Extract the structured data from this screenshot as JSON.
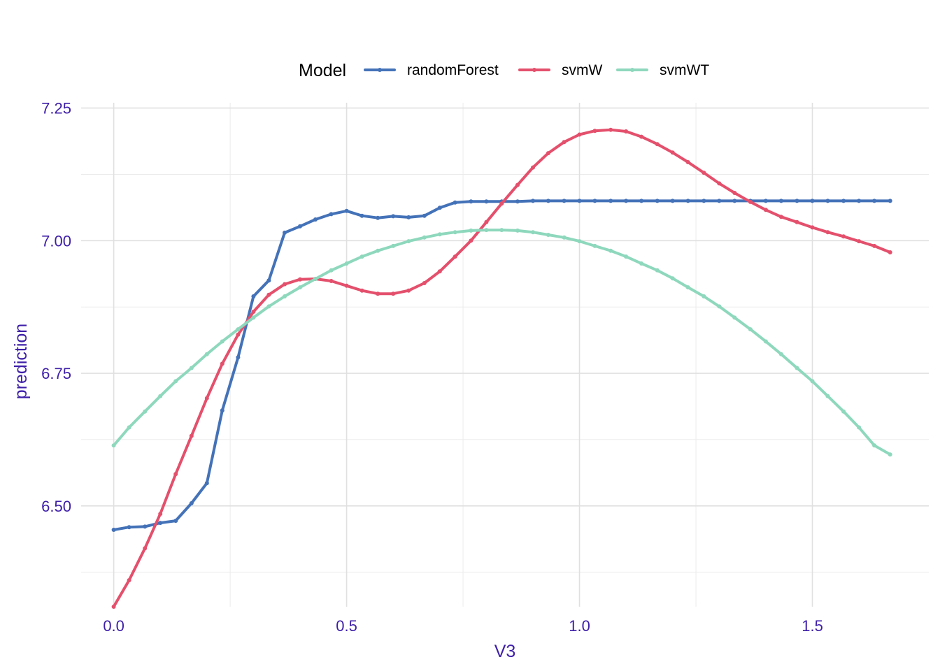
{
  "chart_data": {
    "type": "line",
    "xlabel": "V3",
    "ylabel": "prediction",
    "xlim": [
      -0.07,
      1.75
    ],
    "ylim": [
      6.31,
      7.26
    ],
    "x_ticks": [
      0.0,
      0.5,
      1.0,
      1.5
    ],
    "x_tick_labels": [
      "0.0",
      "0.5",
      "1.0",
      "1.5"
    ],
    "y_ticks": [
      6.5,
      6.75,
      7.0,
      7.25
    ],
    "y_tick_labels": [
      "6.50",
      "6.75",
      "7.00",
      "7.25"
    ],
    "grid": true,
    "legend": {
      "title": "Model",
      "position": "top"
    },
    "series": [
      {
        "name": "randomForest",
        "color": "#4472b8",
        "points": [
          [
            0.0,
            6.455
          ],
          [
            0.033,
            6.46
          ],
          [
            0.067,
            6.461
          ],
          [
            0.1,
            6.468
          ],
          [
            0.133,
            6.472
          ],
          [
            0.167,
            6.505
          ],
          [
            0.2,
            6.543
          ],
          [
            0.233,
            6.68
          ],
          [
            0.267,
            6.78
          ],
          [
            0.3,
            6.895
          ],
          [
            0.333,
            6.925
          ],
          [
            0.367,
            7.015
          ],
          [
            0.4,
            7.027
          ],
          [
            0.433,
            7.04
          ],
          [
            0.467,
            7.05
          ],
          [
            0.5,
            7.056
          ],
          [
            0.533,
            7.047
          ],
          [
            0.567,
            7.043
          ],
          [
            0.6,
            7.046
          ],
          [
            0.633,
            7.044
          ],
          [
            0.667,
            7.047
          ],
          [
            0.7,
            7.062
          ],
          [
            0.733,
            7.072
          ],
          [
            0.767,
            7.074
          ],
          [
            0.8,
            7.074
          ],
          [
            0.833,
            7.074
          ],
          [
            0.867,
            7.074
          ],
          [
            0.9,
            7.075
          ],
          [
            0.933,
            7.075
          ],
          [
            0.967,
            7.075
          ],
          [
            1.0,
            7.075
          ],
          [
            1.033,
            7.075
          ],
          [
            1.067,
            7.075
          ],
          [
            1.1,
            7.075
          ],
          [
            1.133,
            7.075
          ],
          [
            1.167,
            7.075
          ],
          [
            1.2,
            7.075
          ],
          [
            1.233,
            7.075
          ],
          [
            1.267,
            7.075
          ],
          [
            1.3,
            7.075
          ],
          [
            1.333,
            7.075
          ],
          [
            1.367,
            7.075
          ],
          [
            1.4,
            7.075
          ],
          [
            1.433,
            7.075
          ],
          [
            1.467,
            7.075
          ],
          [
            1.5,
            7.075
          ],
          [
            1.533,
            7.075
          ],
          [
            1.567,
            7.075
          ],
          [
            1.6,
            7.075
          ],
          [
            1.633,
            7.075
          ],
          [
            1.667,
            7.075
          ]
        ]
      },
      {
        "name": "svmW",
        "color": "#e4506c",
        "points": [
          [
            0.0,
            6.31
          ],
          [
            0.033,
            6.36
          ],
          [
            0.067,
            6.42
          ],
          [
            0.1,
            6.485
          ],
          [
            0.133,
            6.56
          ],
          [
            0.167,
            6.632
          ],
          [
            0.2,
            6.703
          ],
          [
            0.233,
            6.768
          ],
          [
            0.267,
            6.823
          ],
          [
            0.3,
            6.866
          ],
          [
            0.333,
            6.898
          ],
          [
            0.367,
            6.918
          ],
          [
            0.4,
            6.927
          ],
          [
            0.433,
            6.928
          ],
          [
            0.467,
            6.924
          ],
          [
            0.5,
            6.915
          ],
          [
            0.533,
            6.906
          ],
          [
            0.567,
            6.9
          ],
          [
            0.6,
            6.9
          ],
          [
            0.633,
            6.906
          ],
          [
            0.667,
            6.92
          ],
          [
            0.7,
            6.942
          ],
          [
            0.733,
            6.97
          ],
          [
            0.767,
            7.0
          ],
          [
            0.8,
            7.035
          ],
          [
            0.833,
            7.07
          ],
          [
            0.867,
            7.105
          ],
          [
            0.9,
            7.138
          ],
          [
            0.933,
            7.165
          ],
          [
            0.967,
            7.186
          ],
          [
            1.0,
            7.2
          ],
          [
            1.033,
            7.207
          ],
          [
            1.067,
            7.209
          ],
          [
            1.1,
            7.206
          ],
          [
            1.133,
            7.196
          ],
          [
            1.167,
            7.182
          ],
          [
            1.2,
            7.166
          ],
          [
            1.233,
            7.148
          ],
          [
            1.267,
            7.128
          ],
          [
            1.3,
            7.108
          ],
          [
            1.333,
            7.09
          ],
          [
            1.367,
            7.073
          ],
          [
            1.4,
            7.058
          ],
          [
            1.433,
            7.045
          ],
          [
            1.467,
            7.035
          ],
          [
            1.5,
            7.025
          ],
          [
            1.533,
            7.016
          ],
          [
            1.567,
            7.008
          ],
          [
            1.6,
            6.999
          ],
          [
            1.633,
            6.99
          ],
          [
            1.667,
            6.978
          ]
        ]
      },
      {
        "name": "svmWT",
        "color": "#8ed8bd",
        "points": [
          [
            0.0,
            6.614
          ],
          [
            0.033,
            6.648
          ],
          [
            0.067,
            6.678
          ],
          [
            0.1,
            6.707
          ],
          [
            0.133,
            6.735
          ],
          [
            0.167,
            6.76
          ],
          [
            0.2,
            6.786
          ],
          [
            0.233,
            6.81
          ],
          [
            0.267,
            6.833
          ],
          [
            0.3,
            6.855
          ],
          [
            0.333,
            6.876
          ],
          [
            0.367,
            6.895
          ],
          [
            0.4,
            6.912
          ],
          [
            0.433,
            6.928
          ],
          [
            0.467,
            6.944
          ],
          [
            0.5,
            6.957
          ],
          [
            0.533,
            6.97
          ],
          [
            0.567,
            6.981
          ],
          [
            0.6,
            6.99
          ],
          [
            0.633,
            6.999
          ],
          [
            0.667,
            7.006
          ],
          [
            0.7,
            7.012
          ],
          [
            0.733,
            7.016
          ],
          [
            0.767,
            7.019
          ],
          [
            0.8,
            7.02
          ],
          [
            0.833,
            7.02
          ],
          [
            0.867,
            7.019
          ],
          [
            0.9,
            7.016
          ],
          [
            0.933,
            7.011
          ],
          [
            0.967,
            7.006
          ],
          [
            1.0,
            6.999
          ],
          [
            1.033,
            6.99
          ],
          [
            1.067,
            6.981
          ],
          [
            1.1,
            6.97
          ],
          [
            1.133,
            6.957
          ],
          [
            1.167,
            6.944
          ],
          [
            1.2,
            6.929
          ],
          [
            1.233,
            6.912
          ],
          [
            1.267,
            6.895
          ],
          [
            1.3,
            6.876
          ],
          [
            1.333,
            6.855
          ],
          [
            1.367,
            6.833
          ],
          [
            1.4,
            6.81
          ],
          [
            1.433,
            6.786
          ],
          [
            1.467,
            6.76
          ],
          [
            1.5,
            6.735
          ],
          [
            1.533,
            6.707
          ],
          [
            1.567,
            6.678
          ],
          [
            1.6,
            6.648
          ],
          [
            1.633,
            6.614
          ],
          [
            1.667,
            6.597
          ]
        ]
      }
    ]
  }
}
